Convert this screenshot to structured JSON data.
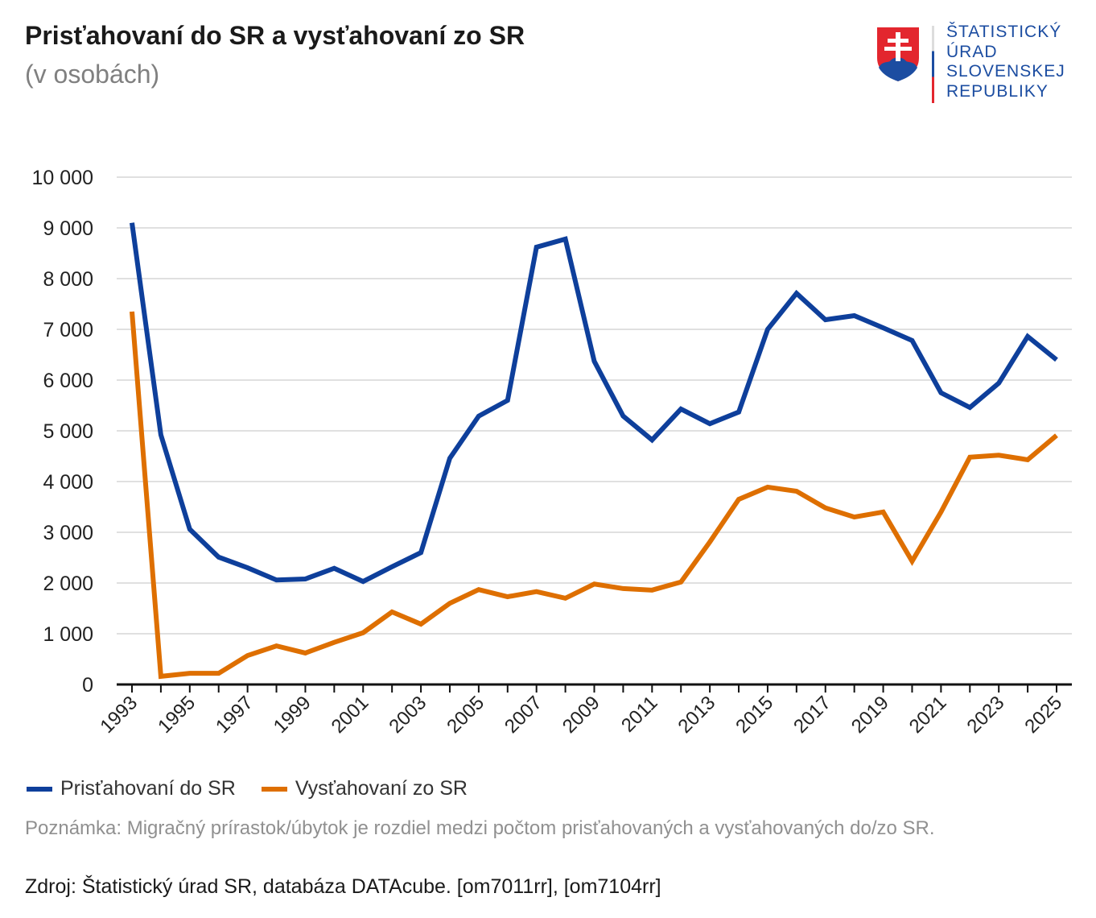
{
  "header": {
    "title": "Prisťahovaní do SR a vysťahovaní zo SR",
    "subtitle": "(v osobách)"
  },
  "logo": {
    "lines": [
      "ŠTATISTICKÝ",
      "ÚRAD",
      "SLOVENSKEJ",
      "REPUBLIKY"
    ]
  },
  "chart_data": {
    "type": "line",
    "title": "Prisťahovaní do SR a vysťahovaní zo SR",
    "ylabel": "(v osobách)",
    "ylim": [
      0,
      10000
    ],
    "yticks": [
      0,
      1000,
      2000,
      3000,
      4000,
      5000,
      6000,
      7000,
      8000,
      9000,
      10000
    ],
    "ytick_labels": [
      "0",
      "1 000",
      "2 000",
      "3 000",
      "4 000",
      "5 000",
      "6 000",
      "7 000",
      "8 000",
      "9 000",
      "10 000"
    ],
    "x": [
      1993,
      1994,
      1995,
      1996,
      1997,
      1998,
      1999,
      2000,
      2001,
      2002,
      2003,
      2004,
      2005,
      2006,
      2007,
      2008,
      2009,
      2010,
      2011,
      2012,
      2013,
      2014,
      2015,
      2016,
      2017,
      2018,
      2019,
      2020,
      2021,
      2022,
      2023,
      2024,
      2025
    ],
    "xtick_labels": [
      "1993",
      "1995",
      "1997",
      "1999",
      "2001",
      "2003",
      "2005",
      "2007",
      "2009",
      "2011",
      "2013",
      "2015",
      "2017",
      "2019",
      "2021",
      "2023",
      "2025"
    ],
    "grid": true,
    "legend_position": "bottom-left",
    "series": [
      {
        "name": "Prisťahovaní do SR",
        "color": "#0e3f9b",
        "values": [
          9100,
          4920,
          3060,
          2510,
          2300,
          2060,
          2080,
          2290,
          2030,
          2320,
          2600,
          4460,
          5290,
          5600,
          8620,
          8780,
          6370,
          5290,
          4820,
          5430,
          5140,
          5370,
          7000,
          7710,
          7190,
          7270,
          7030,
          6780,
          5750,
          5460,
          5940,
          6860,
          6400
        ]
      },
      {
        "name": "Vysťahovaní zo SR",
        "color": "#de6f00",
        "values": [
          7350,
          160,
          220,
          220,
          570,
          760,
          620,
          830,
          1020,
          1430,
          1190,
          1600,
          1870,
          1730,
          1830,
          1700,
          1980,
          1890,
          1860,
          2020,
          2810,
          3650,
          3890,
          3810,
          3480,
          3300,
          3400,
          2430,
          3400,
          4480,
          4520,
          4430,
          4910
        ]
      }
    ]
  },
  "footer": {
    "note": "Poznámka: Migračný prírastok/úbytok je rozdiel medzi počtom prisťahovaných a vysťahovaných do/zo SR.",
    "source": "Zdroj: Štatistický úrad SR, databáza DATAcube. [om7011rr], [om7104rr]"
  }
}
